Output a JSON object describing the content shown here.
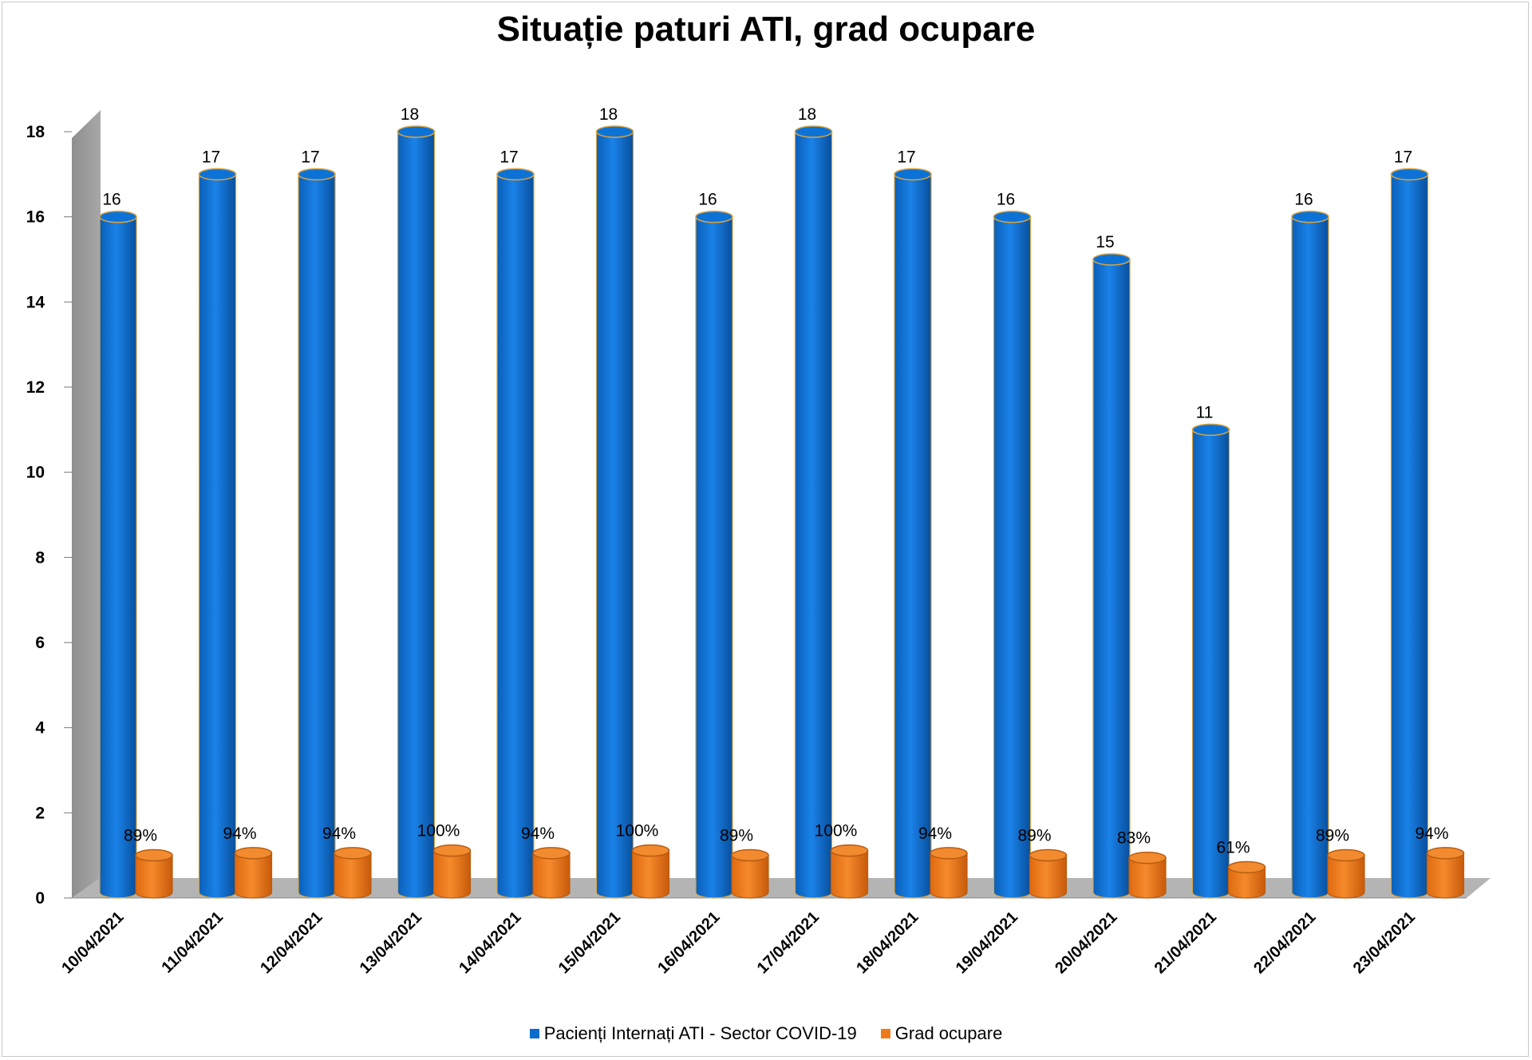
{
  "chart_data": {
    "type": "bar",
    "title": "Situație paturi ATI, grad ocupare",
    "categories": [
      "10/04/2021",
      "11/04/2021",
      "12/04/2021",
      "13/04/2021",
      "14/04/2021",
      "15/04/2021",
      "16/04/2021",
      "17/04/2021",
      "18/04/2021",
      "19/04/2021",
      "20/04/2021",
      "21/04/2021",
      "22/04/2021",
      "23/04/2021"
    ],
    "series": [
      {
        "name": "Pacienți Internați ATI - Sector COVID-19",
        "color": "#0a6ccd",
        "values": [
          16,
          17,
          17,
          18,
          17,
          18,
          16,
          18,
          17,
          16,
          15,
          11,
          16,
          17
        ],
        "labels": [
          "16",
          "17",
          "17",
          "18",
          "17",
          "18",
          "16",
          "18",
          "17",
          "16",
          "15",
          "11",
          "16",
          "17"
        ]
      },
      {
        "name": "Grad ocupare",
        "color": "#ef7a1c",
        "values": [
          0.89,
          0.94,
          0.94,
          1.0,
          0.94,
          1.0,
          0.89,
          1.0,
          0.94,
          0.89,
          0.83,
          0.61,
          0.89,
          0.94
        ],
        "labels": [
          "89%",
          "94%",
          "94%",
          "100%",
          "94%",
          "100%",
          "89%",
          "100%",
          "94%",
          "89%",
          "83%",
          "61%",
          "89%",
          "94%"
        ]
      }
    ],
    "ylim": [
      0,
      18
    ],
    "yticks": [
      "0",
      "2",
      "4",
      "6",
      "8",
      "10",
      "12",
      "14",
      "16",
      "18"
    ],
    "grid": false,
    "legend_position": "bottom"
  }
}
